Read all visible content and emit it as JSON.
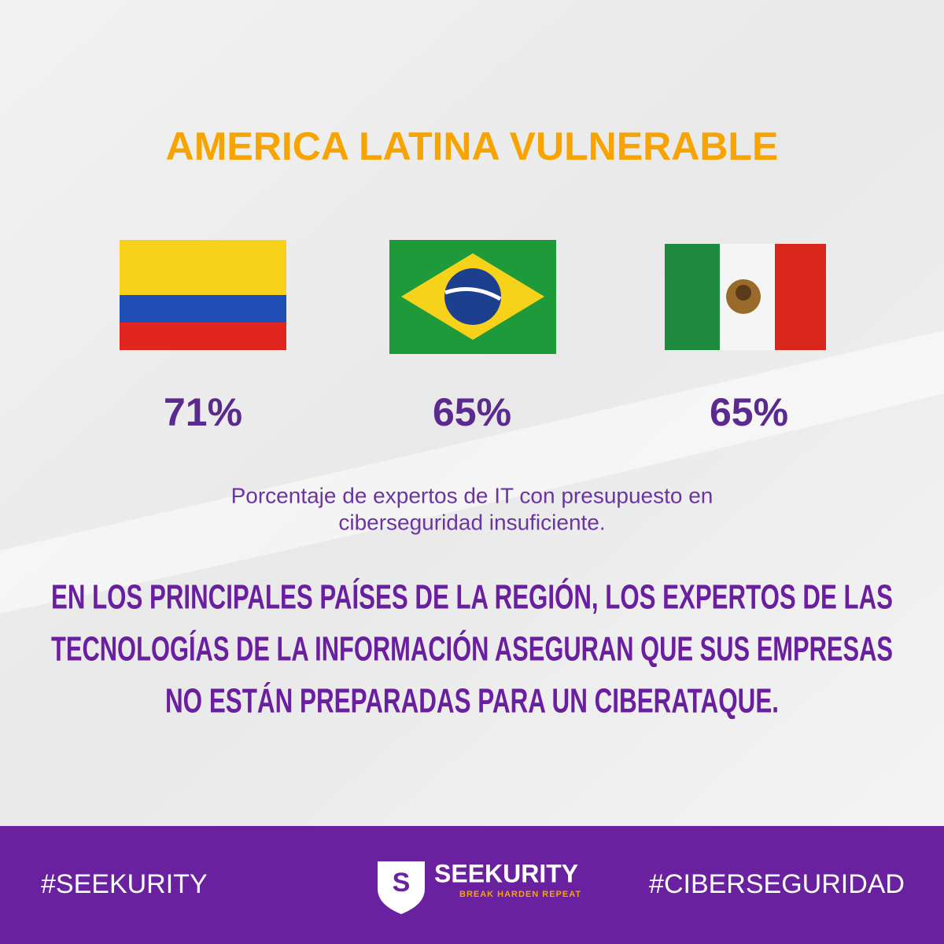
{
  "header": {
    "title": "AMERICA LATINA VULNERABLE"
  },
  "stats": [
    {
      "label": "71%"
    },
    {
      "label": "65%"
    },
    {
      "label": "65%"
    }
  ],
  "caption": [
    "Porcentaje de expertos de IT con presupuesto en",
    "ciberseguridad insuficiente."
  ],
  "statement": [
    "EN LOS PRINCIPALES PAÍSES DE LA REGIÓN, LOS EXPERTOS DE LAS",
    "TECNOLOGÍAS DE LA INFORMACIÓN ASEGURAN QUE SUS EMPRESAS",
    "NO ESTÁN PREPARADAS PARA UN CIBERATAQUE."
  ],
  "footer": {
    "left": "#SEEKURITY",
    "logo_letter": "S",
    "brand": "SEEKURITY",
    "tagline": "BREAK HARDEN REPEAT",
    "right": "#CIBERSEGURIDAD"
  }
}
